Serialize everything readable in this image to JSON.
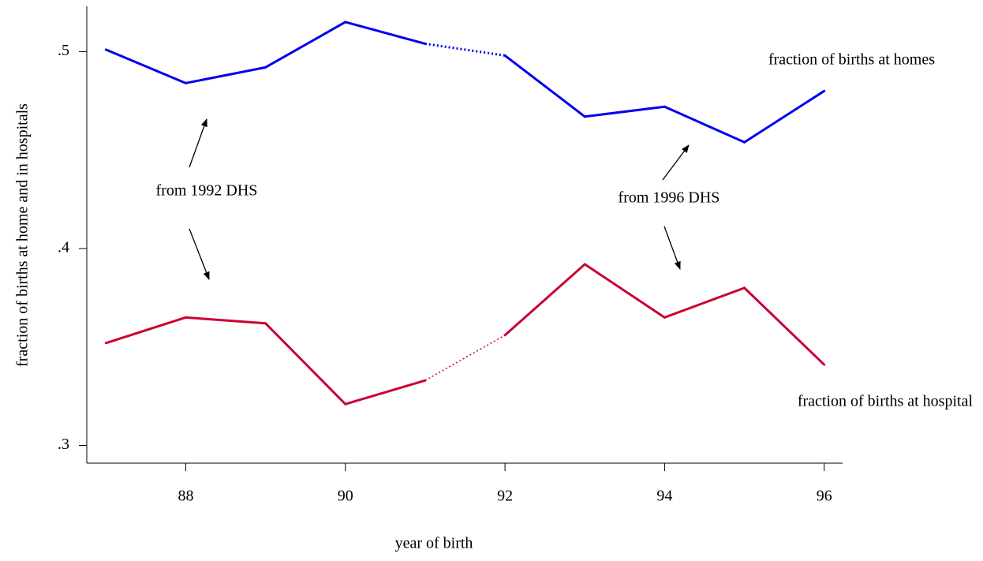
{
  "chart_data": {
    "type": "line",
    "x_label": "year of birth",
    "y_label": "fraction of births at home and in hospitals",
    "x": [
      87,
      88,
      89,
      90,
      91,
      92,
      93,
      94,
      95,
      96
    ],
    "series": [
      {
        "name": "fraction of births at homes",
        "color": "#0000ee",
        "values": [
          0.501,
          0.484,
          0.492,
          0.515,
          0.504,
          0.498,
          0.467,
          0.472,
          0.454,
          0.48
        ]
      },
      {
        "name": "fraction of births at hospital",
        "color": "#cc0033",
        "values": [
          0.352,
          0.365,
          0.362,
          0.321,
          0.333,
          0.356,
          0.392,
          0.365,
          0.38,
          0.341
        ]
      }
    ],
    "dotted_from_index": 4,
    "annotations": [
      "from 1992 DHS",
      "from 1996 DHS"
    ],
    "xlim": [
      86.76,
      96.23
    ],
    "xticks": [
      88,
      90,
      92,
      94,
      96
    ],
    "ylim": [
      0.291,
      0.523
    ],
    "yticks": [
      {
        "value": 0.3,
        "label": ".3"
      },
      {
        "value": 0.4,
        "label": ".4"
      },
      {
        "value": 0.5,
        "label": ".5"
      }
    ],
    "grid": false
  }
}
